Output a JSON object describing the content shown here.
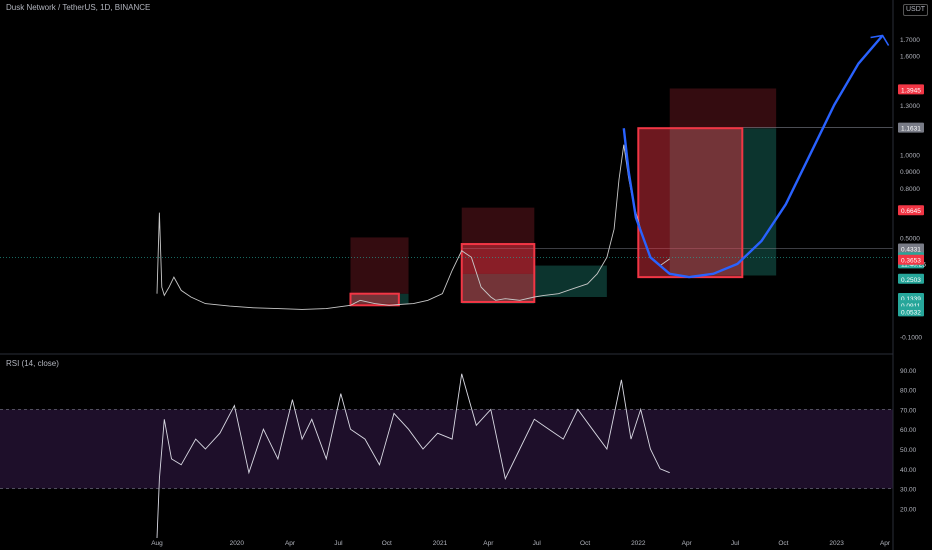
{
  "header": {
    "symbol_title": "Dusk Network / TetherUS, 1D, BINANCE",
    "currency_badge": "USDT"
  },
  "rsi_panel": {
    "title": "RSI (14, close)"
  },
  "colors": {
    "background": "#000000",
    "red_box": "#f23645",
    "green_zone": "#0d3a33",
    "red_zone": "#3a0d12",
    "curve_blue": "#2962ff",
    "rsi_band": "#1e0f2a",
    "rsi_line": "#d9d9e3",
    "tag_green": "#26a69a",
    "tag_red": "#f23645",
    "tag_gray": "#787b86"
  },
  "chart_data": [
    {
      "type": "line",
      "panel": "price",
      "ylim": [
        -0.15,
        1.85
      ],
      "yticks": [
        "-0.1000",
        "0.0532",
        "0.0911",
        "0.1339",
        "0.2503",
        "0.3653",
        "0.3791",
        "0.4331",
        "0.5000",
        "0.6645",
        "0.8000",
        "0.9000",
        "1.0000",
        "1.1631",
        "1.3000",
        "1.3945",
        "1.6000",
        "1.7000"
      ],
      "ytick_values": [
        -0.1,
        0.0532,
        0.0911,
        0.1339,
        0.2503,
        0.3653,
        0.3791,
        0.4331,
        0.5,
        0.6645,
        0.8,
        0.9,
        1.0,
        1.1631,
        1.3,
        1.3945,
        1.6,
        1.7
      ],
      "price_tags": [
        {
          "text": "1.3945",
          "value": 1.3945,
          "color": "red"
        },
        {
          "text": "1.1631",
          "value": 1.1631,
          "color": "gray"
        },
        {
          "text": "0.6645",
          "value": 0.6645,
          "color": "red"
        },
        {
          "text": "0.4331",
          "value": 0.4331,
          "color": "gray"
        },
        {
          "text": "0.3791",
          "value": 0.3791,
          "color": "green"
        },
        {
          "text": "11:40:25",
          "value": 0.343,
          "color": "green"
        },
        {
          "text": "0.3653",
          "value": 0.3653,
          "color": "red"
        },
        {
          "text": "0.2503",
          "value": 0.2503,
          "color": "green"
        },
        {
          "text": "0.1339",
          "value": 0.1339,
          "color": "green"
        },
        {
          "text": "0.0911",
          "value": 0.0911,
          "color": "green"
        },
        {
          "text": "0.0532",
          "value": 0.0532,
          "color": "green"
        }
      ],
      "xticks": [
        "Aug",
        "2020",
        "Apr",
        "Jul",
        "Oct",
        "2021",
        "Apr",
        "Jul",
        "Oct",
        "2022",
        "Apr",
        "Jul",
        "Oct",
        "2023",
        "Apr"
      ],
      "xtick_t": [
        0,
        1.65,
        2.75,
        3.75,
        4.75,
        5.85,
        6.85,
        7.85,
        8.85,
        9.95,
        10.95,
        11.95,
        12.95,
        14.05,
        15.05
      ],
      "series": [
        {
          "values_t": [
            0,
            0.05,
            0.1,
            0.15,
            0.25,
            0.35,
            0.5,
            0.7,
            1.0,
            1.5,
            2.0,
            2.5,
            3.0,
            3.5,
            4.0,
            4.2,
            4.5,
            4.8,
            5.0,
            5.3,
            5.6,
            5.9,
            6.1,
            6.3,
            6.5,
            6.7,
            6.9,
            7.0,
            7.2,
            7.5,
            7.8,
            8.0,
            8.3,
            8.6,
            8.9,
            9.1,
            9.3,
            9.45,
            9.55,
            9.65,
            9.75,
            9.85,
            9.95,
            10.05,
            10.2,
            10.4,
            10.6
          ],
          "values": [
            0.16,
            0.65,
            0.2,
            0.15,
            0.2,
            0.26,
            0.18,
            0.14,
            0.1,
            0.085,
            0.075,
            0.07,
            0.065,
            0.07,
            0.09,
            0.12,
            0.1,
            0.09,
            0.095,
            0.1,
            0.12,
            0.16,
            0.3,
            0.42,
            0.38,
            0.2,
            0.14,
            0.12,
            0.13,
            0.12,
            0.14,
            0.15,
            0.16,
            0.19,
            0.22,
            0.28,
            0.38,
            0.55,
            0.85,
            1.06,
            0.86,
            0.7,
            0.6,
            0.5,
            0.38,
            0.33,
            0.37
          ]
        }
      ],
      "projection_curve_t": [
        9.65,
        9.75,
        9.9,
        10.2,
        10.6,
        11.0,
        11.5,
        12.0,
        12.5,
        13.0,
        13.5,
        14.0,
        14.5,
        15.0
      ],
      "projection_curve_values": [
        1.16,
        0.9,
        0.62,
        0.38,
        0.28,
        0.26,
        0.28,
        0.34,
        0.48,
        0.7,
        1.0,
        1.3,
        1.55,
        1.72
      ]
    },
    {
      "type": "line",
      "panel": "rsi",
      "ylim": [
        5,
        95
      ],
      "yticks": [
        "20.00",
        "30.00",
        "40.00",
        "50.00",
        "60.00",
        "70.00",
        "80.00",
        "90.00"
      ],
      "ytick_values": [
        20,
        30,
        40,
        50,
        60,
        70,
        80,
        90
      ],
      "overbought": 70,
      "oversold": 30,
      "series": [
        {
          "values_t": [
            0,
            0.05,
            0.15,
            0.3,
            0.5,
            0.8,
            1.0,
            1.3,
            1.6,
            1.9,
            2.2,
            2.5,
            2.8,
            3.0,
            3.2,
            3.5,
            3.8,
            4.0,
            4.3,
            4.6,
            4.9,
            5.2,
            5.5,
            5.8,
            6.1,
            6.3,
            6.6,
            6.9,
            7.2,
            7.5,
            7.8,
            8.1,
            8.4,
            8.7,
            9.0,
            9.3,
            9.6,
            9.8,
            10.0,
            10.2,
            10.4,
            10.6
          ],
          "values": [
            5,
            35,
            65,
            45,
            42,
            55,
            50,
            58,
            72,
            38,
            60,
            45,
            75,
            55,
            65,
            45,
            78,
            60,
            55,
            42,
            68,
            60,
            50,
            58,
            55,
            88,
            62,
            70,
            35,
            50,
            65,
            60,
            55,
            70,
            60,
            50,
            85,
            55,
            70,
            50,
            40,
            38
          ]
        }
      ]
    }
  ]
}
